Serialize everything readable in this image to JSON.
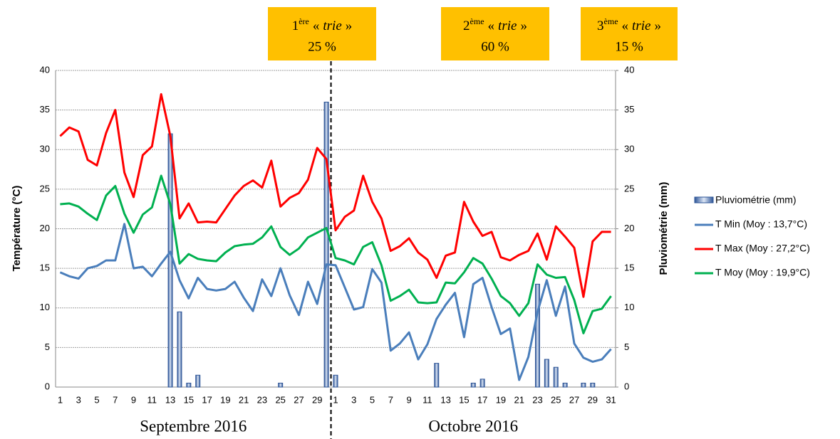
{
  "chart_data": {
    "type": "combo",
    "annotations": [
      {
        "ordinal": "1",
        "superscript": "ère",
        "open": "«",
        "word": "trie",
        "close": "»",
        "share": "25 %"
      },
      {
        "ordinal": "2",
        "superscript": "ème",
        "open": "«",
        "word": "trie",
        "close": "»",
        "share": "60 %"
      },
      {
        "ordinal": "3",
        "superscript": "ème",
        "open": "«",
        "word": "trie",
        "close": "»",
        "share": "15 %"
      }
    ],
    "y_label": "Température (°C)",
    "y2_label": "Pluviométrie (mm)",
    "groups": [
      "Septembre 2016",
      "Octobre 2016"
    ],
    "categories": [
      "1",
      null,
      "3",
      null,
      "5",
      null,
      "7",
      null,
      "9",
      null,
      "11",
      null,
      "13",
      null,
      "15",
      null,
      "17",
      null,
      "19",
      null,
      "21",
      null,
      "23",
      null,
      "25",
      null,
      "27",
      null,
      "29",
      null,
      "1",
      null,
      "3",
      null,
      "5",
      null,
      "7",
      null,
      "9",
      null,
      "11",
      null,
      "13",
      null,
      "15",
      null,
      "17",
      null,
      "19",
      null,
      "21",
      null,
      "23",
      null,
      "25",
      null,
      "27",
      null,
      "29",
      null,
      "31"
    ],
    "ylim": [
      0,
      40
    ],
    "yticks": [
      0,
      5,
      10,
      15,
      20,
      25,
      30,
      35,
      40
    ],
    "y2lim": [
      0,
      40
    ],
    "y2ticks": [
      0,
      5,
      10,
      15,
      20,
      25,
      30,
      35,
      40
    ],
    "grid": true,
    "series": [
      {
        "name": "Pluviométrie (mm)",
        "type": "bar",
        "axis": "y2",
        "color": "#2e5597",
        "values": [
          0,
          0,
          0,
          0,
          0,
          0,
          0,
          0,
          0,
          0,
          0,
          0,
          32,
          9.5,
          0.5,
          1.5,
          0,
          0,
          0,
          0,
          0,
          0,
          0,
          0,
          0.5,
          0,
          0,
          0,
          0,
          36,
          1.5,
          0,
          0,
          0,
          0,
          0,
          0,
          0,
          0,
          0,
          0,
          3,
          0,
          0,
          0,
          0.5,
          1,
          0,
          0,
          0,
          0,
          0,
          13,
          3.5,
          2.5,
          0.5,
          0,
          0.5,
          0.5,
          0,
          0
        ]
      },
      {
        "name": "T Min (Moy : 13,7°C)",
        "type": "line",
        "color": "#4a7ebb",
        "values": [
          14.5,
          14.0,
          13.7,
          15.0,
          15.3,
          16.0,
          16.0,
          20.6,
          15.0,
          15.2,
          14.0,
          15.6,
          17.1,
          13.5,
          11.2,
          13.8,
          12.4,
          12.2,
          12.4,
          13.3,
          11.3,
          9.6,
          13.6,
          11.5,
          15.0,
          11.6,
          9.1,
          13.3,
          10.5,
          15.5,
          15.4,
          12.6,
          9.8,
          10.1,
          14.9,
          13.2,
          4.6,
          5.5,
          6.9,
          3.5,
          5.4,
          8.6,
          10.4,
          11.9,
          6.3,
          13.0,
          13.8,
          10.1,
          6.7,
          7.4,
          0.9,
          3.8,
          9.5,
          13.5,
          9.0,
          12.7,
          5.5,
          3.7,
          3.2,
          3.5,
          4.8
        ]
      },
      {
        "name": "T Max (Moy : 27,2°C)",
        "type": "line",
        "color": "#ff0000",
        "values": [
          31.7,
          32.8,
          32.3,
          28.7,
          28.0,
          32.1,
          35.0,
          27.1,
          24.0,
          29.3,
          30.4,
          37.0,
          31.7,
          21.3,
          23.2,
          20.8,
          20.9,
          20.8,
          22.5,
          24.2,
          25.4,
          26.1,
          25.2,
          28.6,
          22.8,
          23.9,
          24.5,
          26.2,
          30.2,
          28.8,
          19.8,
          21.5,
          22.3,
          26.7,
          23.4,
          21.3,
          17.2,
          17.8,
          18.8,
          17.0,
          16.1,
          13.8,
          16.6,
          17.0,
          23.4,
          20.9,
          19.1,
          19.6,
          16.4,
          16.0,
          16.7,
          17.2,
          19.4,
          16.1,
          20.3,
          19.0,
          17.6,
          11.4,
          18.4,
          19.6,
          19.6
        ]
      },
      {
        "name": "T Moy (Moy : 19,9°C)",
        "type": "line",
        "color": "#00b050",
        "values": [
          23.1,
          23.2,
          22.8,
          21.9,
          21.1,
          24.2,
          25.4,
          21.9,
          19.5,
          21.8,
          22.7,
          26.7,
          23.1,
          15.6,
          16.8,
          16.2,
          16.0,
          15.9,
          17.0,
          17.8,
          18.0,
          18.1,
          18.9,
          20.3,
          17.7,
          16.7,
          17.5,
          18.9,
          19.5,
          20.1,
          16.3,
          16.0,
          15.5,
          17.7,
          18.3,
          15.4,
          10.9,
          11.5,
          12.3,
          10.7,
          10.6,
          10.7,
          13.2,
          13.1,
          14.5,
          16.3,
          15.6,
          13.7,
          11.5,
          10.6,
          9.0,
          10.6,
          15.5,
          14.2,
          13.8,
          13.9,
          11.0,
          6.8,
          9.6,
          9.9,
          11.5
        ]
      }
    ]
  }
}
